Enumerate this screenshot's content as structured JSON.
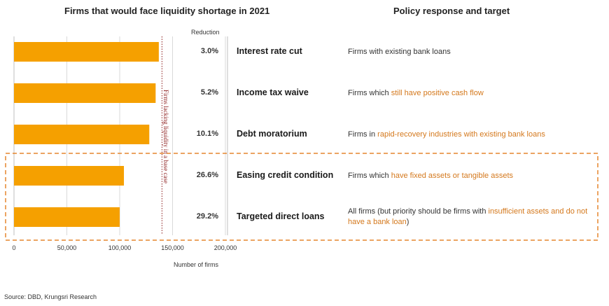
{
  "left_title": "Firms that would face liquidity shortage in 2021",
  "right_title": "Policy response and target",
  "reduction_header": "Reduction",
  "vertical_line_label": "Firms lacking liquidity in a base case",
  "source": "Source: DBD, Krungsri Research",
  "colors": {
    "bar": "#f5a000",
    "highlight": "#d4781c",
    "dashed_box": "#e6852e",
    "dotted_line": "#8b1a1a"
  },
  "chart_data": {
    "type": "bar",
    "orientation": "horizontal",
    "categories": [
      "Interest rate cut",
      "Income tax waive",
      "Debt moratorium",
      "Easing credit condition",
      "Targeted direct loans"
    ],
    "values": [
      137000,
      134000,
      128000,
      104000,
      100000
    ],
    "xlabel": "Number of firms",
    "xlim": [
      0,
      200000
    ],
    "xticks": [
      "0",
      "50,000",
      "100,000",
      "150,000",
      "200,000"
    ],
    "xtick_values": [
      0,
      50000,
      100000,
      150000,
      200000
    ],
    "reference_line": 140000,
    "grid": true
  },
  "rows": [
    {
      "reduction": "3.0%",
      "policy": "Interest rate cut",
      "target": [
        {
          "text": "Firms with existing bank loans",
          "hl": false
        }
      ]
    },
    {
      "reduction": "5.2%",
      "policy": "Income tax waive",
      "target": [
        {
          "text": "Firms which ",
          "hl": false
        },
        {
          "text": "still have positive cash flow",
          "hl": true
        }
      ]
    },
    {
      "reduction": "10.1%",
      "policy": "Debt moratorium",
      "target": [
        {
          "text": "Firms in ",
          "hl": false
        },
        {
          "text": "rapid-recovery industries with existing bank loans",
          "hl": true
        }
      ]
    },
    {
      "reduction": "26.6%",
      "policy": "Easing credit condition",
      "target": [
        {
          "text": "Firms which ",
          "hl": false
        },
        {
          "text": "have fixed assets or tangible assets",
          "hl": true
        }
      ]
    },
    {
      "reduction": "29.2%",
      "policy": "Targeted direct loans",
      "target": [
        {
          "text": "All firms (but priority should be firms with ",
          "hl": false
        },
        {
          "text": "insufficient assets and do not have a bank loan",
          "hl": true
        },
        {
          "text": ")",
          "hl": false
        }
      ]
    }
  ]
}
